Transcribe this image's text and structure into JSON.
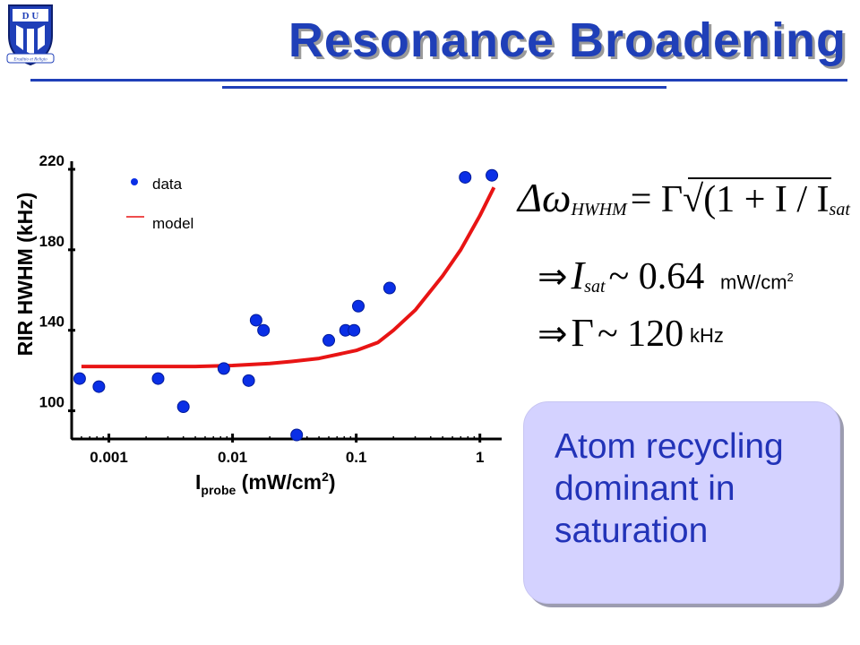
{
  "slide": {
    "title": "Resonance Broadening",
    "logo_letters": "D U",
    "logo_motto": "Eruditio et Religio",
    "accent_color": "#1f3fb8"
  },
  "equations": {
    "main": {
      "lhs_symbol": "Δω",
      "lhs_sub": "HWHM",
      "rhs": "= Γ√(1 + I / I",
      "rhs_sub": "sat",
      "close": ")"
    },
    "isat": {
      "arrow": "⇒",
      "sym": "I",
      "sub": "sat",
      "approx": "~ 0.64",
      "unit": "mW/cm",
      "unit_sup": "2"
    },
    "gamma": {
      "arrow": "⇒",
      "sym": "Γ",
      "approx": "~ 120",
      "unit": "kHz"
    }
  },
  "callout": {
    "text": "Atom recycling dominant in saturation"
  },
  "chart_data": {
    "type": "scatter",
    "xscale": "log",
    "xlim": [
      0.0005,
      1.5
    ],
    "ylim": [
      86,
      224
    ],
    "xticks": [
      0.001,
      0.01,
      0.1,
      1
    ],
    "xtick_labels": [
      "0.001",
      "0.01",
      "0.1",
      "1"
    ],
    "yticks": [
      100,
      140,
      180,
      220
    ],
    "ytick_labels": [
      "100",
      "140",
      "180",
      "220"
    ],
    "ylabel": "RIR HWHM (kHz)",
    "xlabel": {
      "main": "I",
      "sub": "probe",
      "rest": " (mW/cm",
      "sup": "2",
      "close": ")"
    },
    "legend": {
      "position": "top-left",
      "items": [
        {
          "label": "data",
          "marker": "dot"
        },
        {
          "label": "model",
          "marker": "line"
        }
      ]
    },
    "colors": {
      "data": "#0a2fe6",
      "model": "#e81414",
      "axis": "#000000"
    },
    "series": [
      {
        "name": "data",
        "type": "scatter",
        "points": [
          {
            "x": 0.00058,
            "y": 116
          },
          {
            "x": 0.00083,
            "y": 112
          },
          {
            "x": 0.0025,
            "y": 116
          },
          {
            "x": 0.004,
            "y": 102
          },
          {
            "x": 0.0085,
            "y": 121
          },
          {
            "x": 0.0135,
            "y": 115
          },
          {
            "x": 0.0155,
            "y": 145
          },
          {
            "x": 0.0178,
            "y": 140
          },
          {
            "x": 0.033,
            "y": 88
          },
          {
            "x": 0.06,
            "y": 135
          },
          {
            "x": 0.082,
            "y": 140
          },
          {
            "x": 0.096,
            "y": 140
          },
          {
            "x": 0.104,
            "y": 152
          },
          {
            "x": 0.186,
            "y": 161
          },
          {
            "x": 0.76,
            "y": 216
          },
          {
            "x": 1.25,
            "y": 217
          }
        ]
      },
      {
        "name": "model",
        "type": "line",
        "points": [
          {
            "x": 0.0006,
            "y": 122
          },
          {
            "x": 0.001,
            "y": 122
          },
          {
            "x": 0.002,
            "y": 122
          },
          {
            "x": 0.005,
            "y": 122
          },
          {
            "x": 0.01,
            "y": 122.5
          },
          {
            "x": 0.02,
            "y": 123.5
          },
          {
            "x": 0.03,
            "y": 124.5
          },
          {
            "x": 0.05,
            "y": 126
          },
          {
            "x": 0.1,
            "y": 130
          },
          {
            "x": 0.15,
            "y": 134
          },
          {
            "x": 0.2,
            "y": 140
          },
          {
            "x": 0.3,
            "y": 150
          },
          {
            "x": 0.5,
            "y": 167
          },
          {
            "x": 0.7,
            "y": 180
          },
          {
            "x": 1.0,
            "y": 197
          },
          {
            "x": 1.3,
            "y": 211
          }
        ]
      }
    ]
  }
}
